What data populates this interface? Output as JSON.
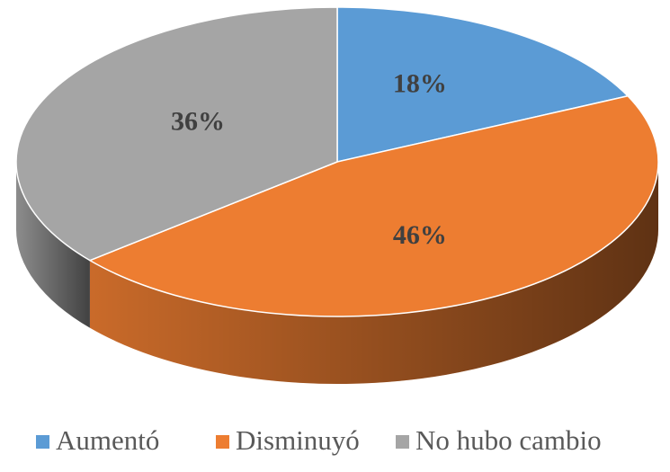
{
  "chart_data": {
    "type": "pie",
    "categories": [
      "Aumentó",
      "Disminuyó",
      "No hubo cambio"
    ],
    "values": [
      18,
      46,
      36
    ],
    "value_labels": [
      "18%",
      "46%",
      "36%"
    ],
    "colors": [
      "#5b9bd5",
      "#ed7d31",
      "#a5a5a5"
    ],
    "legend": "bottom"
  }
}
